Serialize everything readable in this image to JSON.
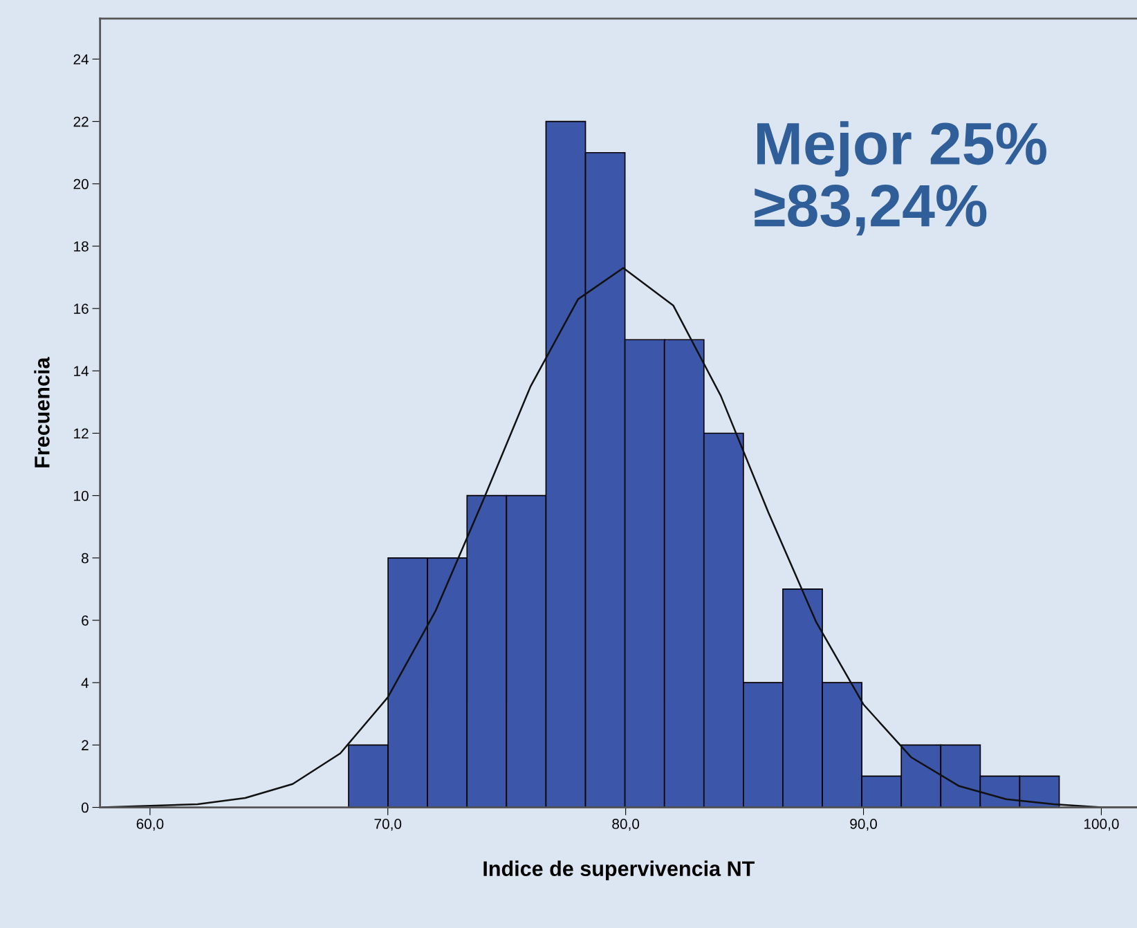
{
  "chart_data": {
    "type": "histogram",
    "xlabel": "Indice de supervivencia NT",
    "ylabel": "Frecuencia",
    "bins": [
      68.35,
      70.01,
      71.67,
      73.33,
      74.99,
      76.65,
      78.31,
      79.97,
      81.63,
      83.29,
      84.95,
      86.61,
      88.27,
      89.93,
      91.59,
      93.25,
      94.91,
      96.57,
      98.23
    ],
    "values": [
      2,
      8,
      8,
      10,
      10,
      22,
      21,
      15,
      15,
      12,
      4,
      7,
      4,
      1,
      2,
      2,
      1,
      1
    ],
    "color": "#3c56a9",
    "series": [
      {
        "type": "line",
        "color": "#111111",
        "x": [
          58,
          62,
          64,
          66,
          68,
          70,
          72,
          74,
          76,
          78,
          79.9,
          82,
          84,
          86,
          88,
          90,
          92,
          94,
          96,
          98,
          100,
          101.5
        ],
        "values": [
          0.0,
          0.1,
          0.3,
          0.75,
          1.73,
          3.53,
          6.29,
          9.83,
          13.5,
          16.3,
          17.3,
          16.1,
          13.2,
          9.46,
          5.96,
          3.3,
          1.61,
          0.69,
          0.26,
          0.1,
          0.0,
          0.0
        ]
      }
    ],
    "annotations": [
      "Mejor 25%\n≥83,24%"
    ],
    "xlim": [
      57.9,
      101.5
    ],
    "ylim": [
      0,
      25.3
    ],
    "xticks": [
      {
        "value": 60,
        "label": "60,0"
      },
      {
        "value": 70,
        "label": "70,0"
      },
      {
        "value": 80,
        "label": "80,0"
      },
      {
        "value": 90,
        "label": "90,0"
      },
      {
        "value": 100,
        "label": "100,0"
      }
    ],
    "yticks": [
      0,
      2,
      4,
      6,
      8,
      10,
      12,
      14,
      16,
      18,
      20,
      22,
      24
    ],
    "grid": false,
    "legend": false
  }
}
